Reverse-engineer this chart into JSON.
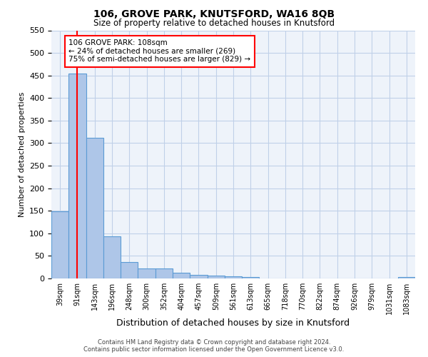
{
  "title": "106, GROVE PARK, KNUTSFORD, WA16 8QB",
  "subtitle": "Size of property relative to detached houses in Knutsford",
  "xlabel": "Distribution of detached houses by size in Knutsford",
  "ylabel": "Number of detached properties",
  "bar_labels": [
    "39sqm",
    "91sqm",
    "143sqm",
    "196sqm",
    "248sqm",
    "300sqm",
    "352sqm",
    "404sqm",
    "457sqm",
    "509sqm",
    "561sqm",
    "613sqm",
    "665sqm",
    "718sqm",
    "770sqm",
    "822sqm",
    "874sqm",
    "926sqm",
    "979sqm",
    "1031sqm",
    "1083sqm"
  ],
  "bar_values": [
    148,
    455,
    312,
    93,
    37,
    22,
    22,
    13,
    8,
    7,
    5,
    3,
    0,
    0,
    0,
    0,
    0,
    0,
    0,
    0,
    3
  ],
  "bar_color": "#aec6e8",
  "bar_edgecolor": "#5b9bd5",
  "grid_color": "#c0d0e8",
  "background_color": "#ffffff",
  "plot_bg_color": "#eef3fa",
  "red_line_x": 1,
  "ylim": [
    0,
    550
  ],
  "yticks": [
    0,
    50,
    100,
    150,
    200,
    250,
    300,
    350,
    400,
    450,
    500,
    550
  ],
  "annotation_text": "106 GROVE PARK: 108sqm\n← 24% of detached houses are smaller (269)\n75% of semi-detached houses are larger (829) →",
  "footer_line1": "Contains HM Land Registry data © Crown copyright and database right 2024.",
  "footer_line2": "Contains public sector information licensed under the Open Government Licence v3.0."
}
